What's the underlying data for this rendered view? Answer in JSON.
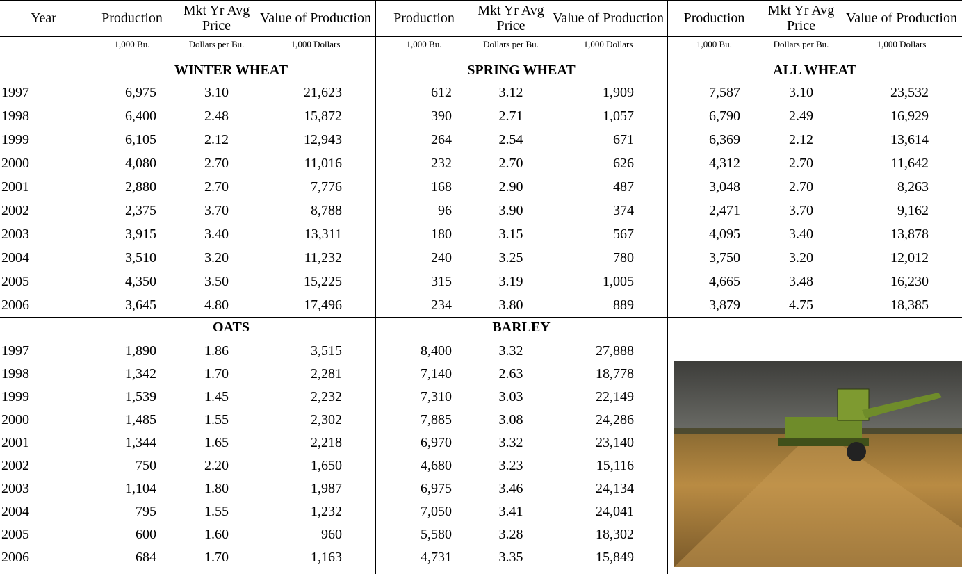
{
  "header": {
    "columns": [
      "Year",
      "Production",
      "Mkt Yr Avg Price",
      "Value of Production",
      "Production",
      "Mkt Yr Avg Price",
      "Value of Production",
      "Production",
      "Mkt Yr Avg Price",
      "Value of Production"
    ],
    "units": [
      "1,000 Bu.",
      "Dollars per Bu.",
      "1,000 Dollars",
      "1,000 Bu.",
      "Dollars per Bu.",
      "1,000 Dollars",
      "1,000 Bu.",
      "Dollars per Bu.",
      "1,000 Dollars"
    ]
  },
  "top": {
    "sections": [
      "WINTER WHEAT",
      "SPRING WHEAT",
      "ALL WHEAT"
    ],
    "rows": [
      [
        "1997",
        "6,975",
        "3.10",
        "21,623",
        "612",
        "3.12",
        "1,909",
        "7,587",
        "3.10",
        "23,532"
      ],
      [
        "1998",
        "6,400",
        "2.48",
        "15,872",
        "390",
        "2.71",
        "1,057",
        "6,790",
        "2.49",
        "16,929"
      ],
      [
        "1999",
        "6,105",
        "2.12",
        "12,943",
        "264",
        "2.54",
        "671",
        "6,369",
        "2.12",
        "13,614"
      ],
      [
        "2000",
        "4,080",
        "2.70",
        "11,016",
        "232",
        "2.70",
        "626",
        "4,312",
        "2.70",
        "11,642"
      ],
      [
        "2001",
        "2,880",
        "2.70",
        "7,776",
        "168",
        "2.90",
        "487",
        "3,048",
        "2.70",
        "8,263"
      ],
      [
        "2002",
        "2,375",
        "3.70",
        "8,788",
        "96",
        "3.90",
        "374",
        "2,471",
        "3.70",
        "9,162"
      ],
      [
        "2003",
        "3,915",
        "3.40",
        "13,311",
        "180",
        "3.15",
        "567",
        "4,095",
        "3.40",
        "13,878"
      ],
      [
        "2004",
        "3,510",
        "3.20",
        "11,232",
        "240",
        "3.25",
        "780",
        "3,750",
        "3.20",
        "12,012"
      ],
      [
        "2005",
        "4,350",
        "3.50",
        "15,225",
        "315",
        "3.19",
        "1,005",
        "4,665",
        "3.48",
        "16,230"
      ],
      [
        "2006",
        "3,645",
        "4.80",
        "17,496",
        "234",
        "3.80",
        "889",
        "3,879",
        "4.75",
        "18,385"
      ]
    ]
  },
  "bottom": {
    "sections": [
      "OATS",
      "BARLEY"
    ],
    "rows": [
      [
        "1997",
        "1,890",
        "1.86",
        "3,515",
        "8,400",
        "3.32",
        "27,888"
      ],
      [
        "1998",
        "1,342",
        "1.70",
        "2,281",
        "7,140",
        "2.63",
        "18,778"
      ],
      [
        "1999",
        "1,539",
        "1.45",
        "2,232",
        "7,310",
        "3.03",
        "22,149"
      ],
      [
        "2000",
        "1,485",
        "1.55",
        "2,302",
        "7,885",
        "3.08",
        "24,286"
      ],
      [
        "2001",
        "1,344",
        "1.65",
        "2,218",
        "6,970",
        "3.32",
        "23,140"
      ],
      [
        "2002",
        "750",
        "2.20",
        "1,650",
        "4,680",
        "3.23",
        "15,116"
      ],
      [
        "2003",
        "1,104",
        "1.80",
        "1,987",
        "6,975",
        "3.46",
        "24,134"
      ],
      [
        "2004",
        "795",
        "1.55",
        "1,232",
        "7,050",
        "3.41",
        "24,041"
      ],
      [
        "2005",
        "600",
        "1.60",
        "960",
        "5,580",
        "3.28",
        "18,302"
      ],
      [
        "2006",
        "684",
        "1.70",
        "1,163",
        "4,731",
        "3.35",
        "15,849"
      ]
    ]
  }
}
